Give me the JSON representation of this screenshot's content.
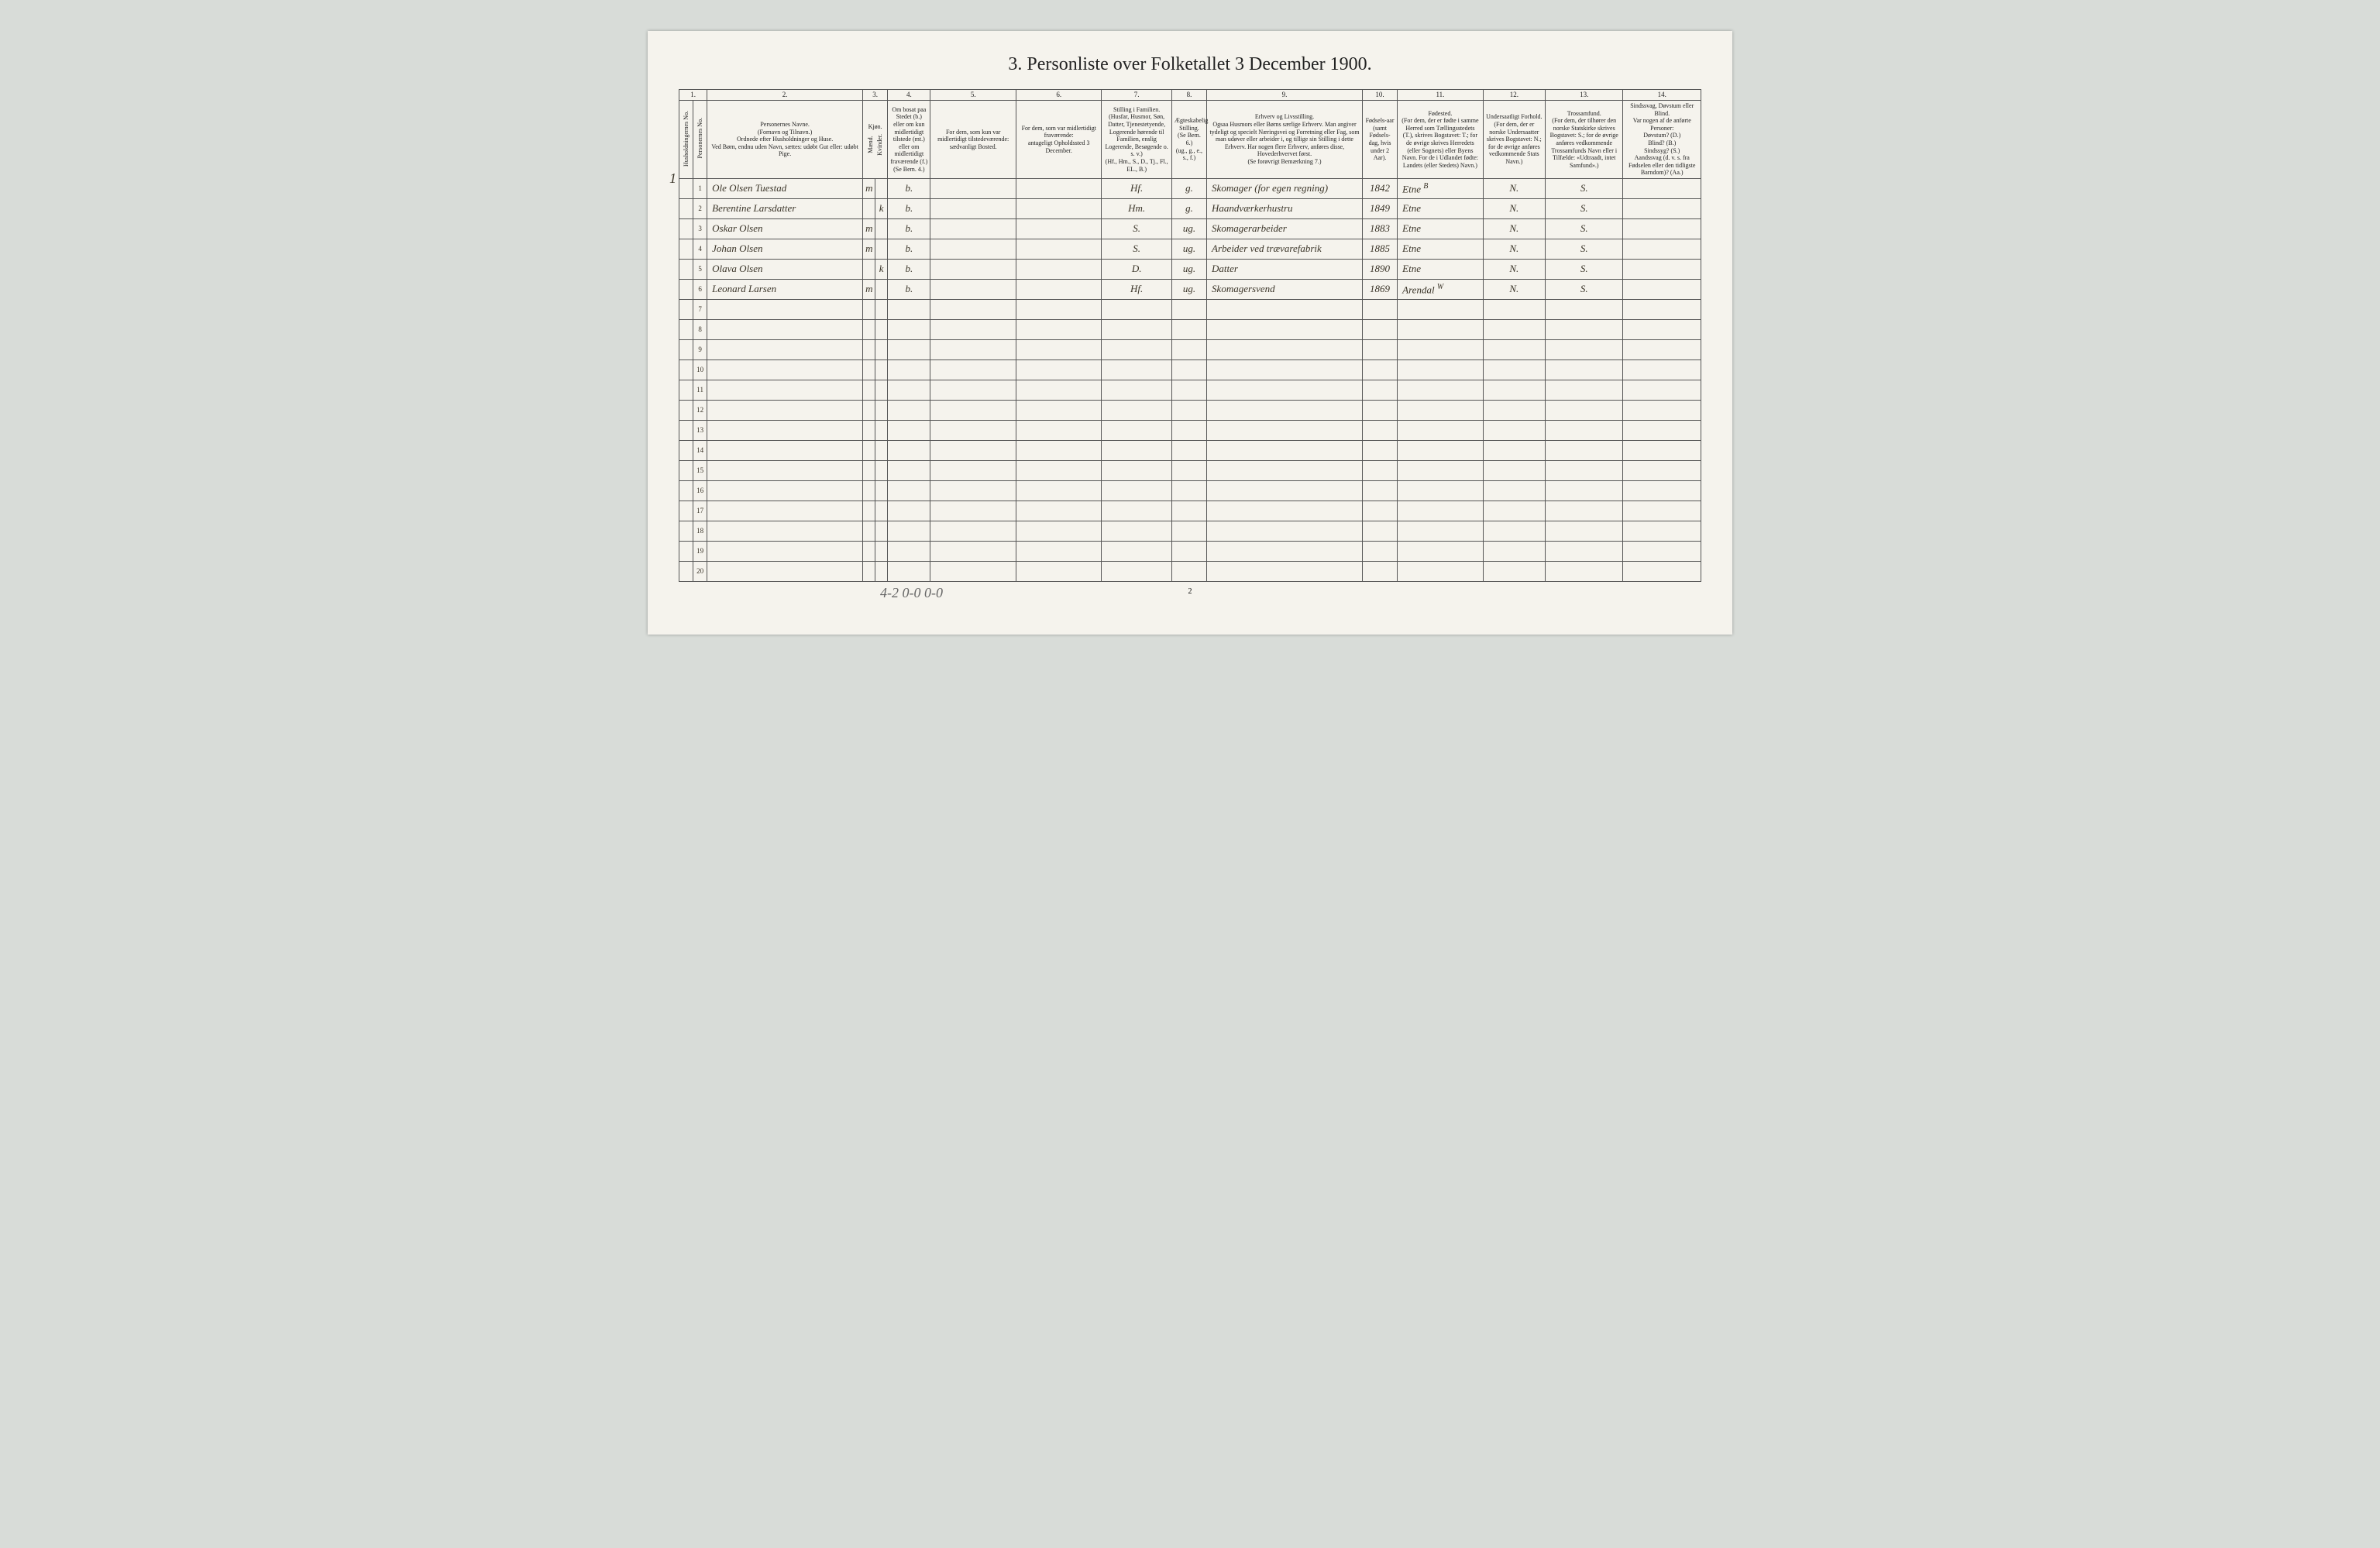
{
  "title": "3. Personliste over Folketallet 3 December 1900.",
  "household_mark": "1",
  "columns": {
    "nums": [
      "1.",
      "2.",
      "3.",
      "4.",
      "5.",
      "6.",
      "7.",
      "8.",
      "9.",
      "10.",
      "11.",
      "12.",
      "13.",
      "14."
    ],
    "c1a": "Husholdningernes No.",
    "c1b": "Personernes No.",
    "c2": "Personernes Navne.\n(Fornavn og Tilnavn.)\nOrdnede efter Husholdninger og Huse.\nVed Børn, endnu uden Navn, sættes: udøbt Gut eller: udøbt Pige.",
    "c3": "Kjøn.",
    "c3a": "Mænd.",
    "c3b": "Kvinder.",
    "c4": "Om bosat paa Stedet (b.) eller om kun midlertidigt tilstede (mt.) eller om midlertidigt fraværende (f.)\n(Se Bem. 4.)",
    "c5": "For dem, som kun var midlertidigt tilstedeværende:\nsædvanligt Bosted.",
    "c6": "For dem, som var midlertidigt fraværende:\nantageligt Opholdssted 3 December.",
    "c7": "Stilling i Familien.\n(Husfar, Husmor, Søn, Datter, Tjenestetyende, Logerende hørende til Familien, enslig Logerende, Besøgende o. s. v.)\n(Hf., Hm., S., D., Tj., Fl., EL., B.)",
    "c8": "Ægteskabelig Stilling.\n(Se Bem. 6.)\n(ug., g., e., s., f.)",
    "c9": "Erhverv og Livsstilling.\nOgsaa Husmors eller Børns særlige Erhverv. Man angiver tydeligt og specielt Næringsvei og Forretning eller Fag, som man udøver eller arbeider i, og tillige sin Stilling i dette Erhverv. Har nogen flere Erhverv, anføres disse, Hovederhvervet først.\n(Se forøvrigt Bemærkning 7.)",
    "c10": "Fødsels-aar\n(samt Fødsels-dag, hvis under 2 Aar).",
    "c11": "Fødested.\n(For dem, der er fødte i samme Herred som Tællingsstedets (T.), skrives Bogstavet: T.; for de øvrige skrives Herredets (eller Sognets) eller Byens Navn. For de i Udlandet fødte: Landets (eller Stedets) Navn.)",
    "c12": "Undersaatligt Forhold.\n(For dem, der er norske Undersaatter skrives Bogstavet: N.; for de øvrige anføres vedkommende Stats Navn.)",
    "c13": "Trossamfund.\n(For dem, der tilhører den norske Statskirke skrives Bogstavet: S.; for de øvrige anføres vedkommende Trossamfunds Navn eller i Tilfælde: «Udtraadt, intet Samfund».)",
    "c14": "Sindssvag, Døvstum eller Blind.\nVar nogen af de anførte Personer:\nDøvstum? (D.)\nBlind? (B.)\nSindssyg? (S.)\nAandssvag (d. v. s. fra Fødselen eller den tidligste Barndom)? (Aa.)"
  },
  "rows": [
    {
      "n": "1",
      "name": "Ole Olsen Tuestad",
      "m": "m",
      "k": "",
      "b": "b.",
      "c5": "",
      "c6": "",
      "fam": "Hf.",
      "eg": "g.",
      "erv": "Skomager (for egen regning)",
      "aar": "1842",
      "fod": "Etne",
      "fodB": "B",
      "us": "N.",
      "tro": "S.",
      "c14": ""
    },
    {
      "n": "2",
      "name": "Berentine Larsdatter",
      "m": "",
      "k": "k",
      "b": "b.",
      "c5": "",
      "c6": "",
      "fam": "Hm.",
      "eg": "g.",
      "erv": "Haandværkerhustru",
      "aar": "1849",
      "fod": "Etne",
      "fodB": "",
      "us": "N.",
      "tro": "S.",
      "c14": ""
    },
    {
      "n": "3",
      "name": "Oskar Olsen",
      "m": "m",
      "k": "",
      "b": "b.",
      "c5": "",
      "c6": "",
      "fam": "S.",
      "eg": "ug.",
      "erv": "Skomagerarbeider",
      "aar": "1883",
      "fod": "Etne",
      "fodB": "",
      "us": "N.",
      "tro": "S.",
      "c14": ""
    },
    {
      "n": "4",
      "name": "Johan Olsen",
      "m": "m",
      "k": "",
      "b": "b.",
      "c5": "",
      "c6": "",
      "fam": "S.",
      "eg": "ug.",
      "erv": "Arbeider ved trævarefabrik",
      "aar": "1885",
      "fod": "Etne",
      "fodB": "",
      "us": "N.",
      "tro": "S.",
      "c14": ""
    },
    {
      "n": "5",
      "name": "Olava Olsen",
      "m": "",
      "k": "k",
      "b": "b.",
      "c5": "",
      "c6": "",
      "fam": "D.",
      "eg": "ug.",
      "erv": "Datter",
      "aar": "1890",
      "fod": "Etne",
      "fodB": "",
      "us": "N.",
      "tro": "S.",
      "c14": ""
    },
    {
      "n": "6",
      "name": "Leonard Larsen",
      "m": "m",
      "k": "",
      "b": "b.",
      "c5": "",
      "c6": "",
      "fam": "Hf.",
      "eg": "ug.",
      "erv": "Skomagersvend",
      "aar": "1869",
      "fod": "Arendal",
      "fodB": "W",
      "us": "N.",
      "tro": "S.",
      "c14": ""
    }
  ],
  "empty_row_nums": [
    "7",
    "8",
    "9",
    "10",
    "11",
    "12",
    "13",
    "14",
    "15",
    "16",
    "17",
    "18",
    "19",
    "20"
  ],
  "footer_tally": "4-2   0-0   0-0",
  "page_num": "2",
  "col_widths": {
    "c1a": 18,
    "c1b": 18,
    "c2": 200,
    "c3a": 16,
    "c3b": 16,
    "c4": 55,
    "c5": 110,
    "c6": 110,
    "c7": 90,
    "c8": 45,
    "c9": 200,
    "c10": 45,
    "c11": 110,
    "c12": 80,
    "c13": 100,
    "c14": 100
  },
  "colors": {
    "page_bg": "#f5f3ed",
    "outer_bg": "#d8dcd8",
    "border": "#555555",
    "text": "#222222",
    "handwriting": "#3a3428"
  }
}
